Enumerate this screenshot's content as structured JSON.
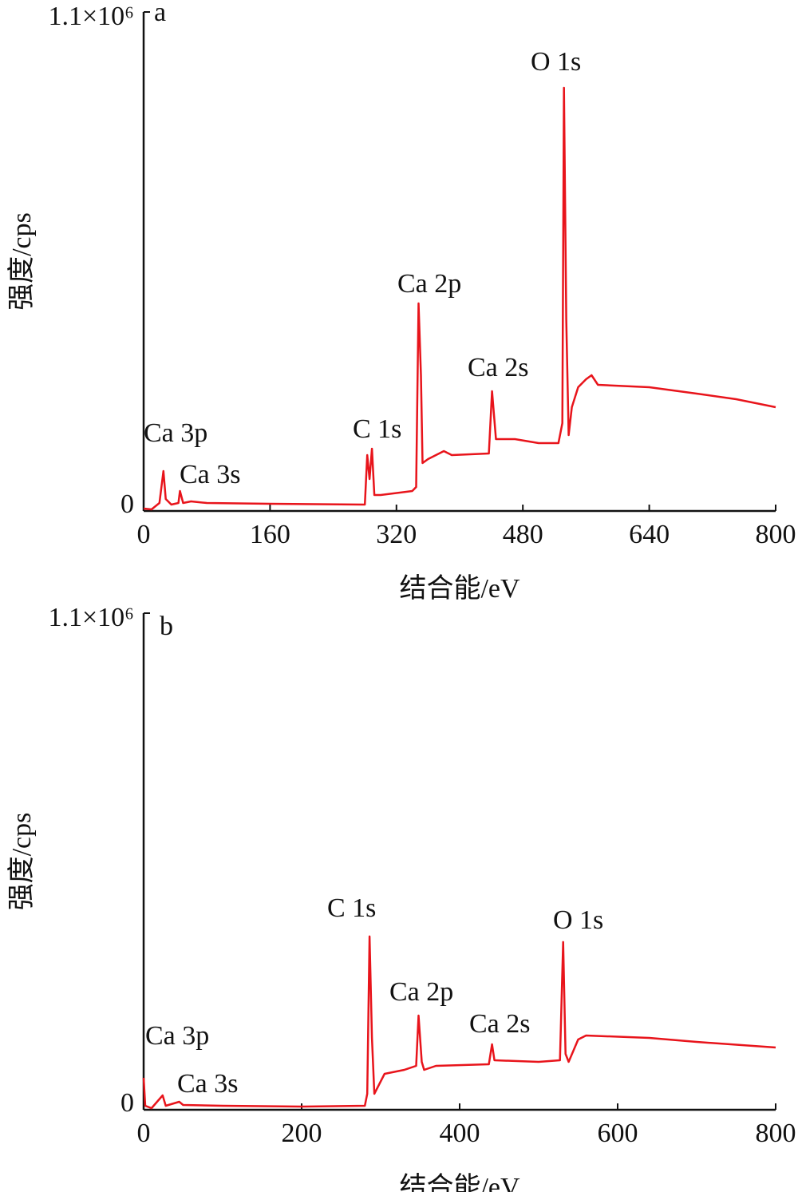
{
  "chart_data": [
    {
      "type": "line",
      "label": "a",
      "xlabel": "结合能/eV",
      "ylabel": "强度/cps",
      "color": "#e8141b",
      "x": [
        0,
        10,
        20,
        25,
        28,
        35,
        44,
        46,
        50,
        60,
        80,
        160,
        280,
        283,
        286,
        289,
        292,
        300,
        340,
        345,
        348,
        351,
        353,
        360,
        380,
        390,
        437,
        441,
        446,
        470,
        500,
        525,
        530,
        532,
        535,
        538,
        542,
        550,
        560,
        567,
        575,
        640,
        700,
        750,
        800
      ],
      "values": [
        5280,
        3520,
        17600,
        88000,
        26400,
        14080,
        17600,
        44000,
        17600,
        21120,
        17600,
        15840,
        14080,
        123200,
        70400,
        137280,
        35200,
        35200,
        44000,
        52800,
        457600,
        299200,
        105600,
        114400,
        132000,
        123200,
        126720,
        264000,
        158400,
        158400,
        149600,
        149600,
        193600,
        932800,
        422400,
        167200,
        228800,
        272800,
        290400,
        299200,
        278080,
        272800,
        258720,
        246400,
        228800
      ],
      "xlim": [
        0,
        800
      ],
      "xticks": [
        0,
        160,
        320,
        480,
        640,
        800
      ],
      "ylim": [
        0,
        1100000
      ],
      "yticks": [
        0,
        {
          "value": 1100000,
          "label": "1.1×10⁶"
        }
      ],
      "annotations": [
        "Ca 3p",
        "Ca 3s",
        "C 1s",
        "Ca 2p",
        "Ca 2s",
        "O 1s"
      ]
    },
    {
      "type": "line",
      "label": "b",
      "xlabel": "结合能/eV",
      "ylabel": "强度/cps",
      "color": "#e8141b",
      "x": [
        0,
        2,
        10,
        24,
        28,
        45,
        50,
        100,
        200,
        280,
        283,
        286,
        289,
        292,
        305,
        330,
        345,
        348,
        352,
        355,
        370,
        437,
        441,
        444,
        500,
        527,
        531,
        534,
        538,
        550,
        560,
        640,
        700,
        800
      ],
      "values": [
        70760,
        8845,
        3538,
        31840,
        8845,
        17690,
        10614,
        8845,
        7076,
        8845,
        35380,
        383900,
        159210,
        35380,
        79600,
        88450,
        97300,
        208700,
        106140,
        88450,
        97300,
        100830,
        145060,
        109680,
        106140,
        109680,
        371500,
        123830,
        106140,
        155670,
        164500,
        159210,
        150370,
        138000
      ],
      "xlim": [
        0,
        800
      ],
      "xticks": [
        0,
        200,
        400,
        600,
        800
      ],
      "ylim": [
        0,
        1100000
      ],
      "yticks": [
        0,
        {
          "value": 1100000,
          "label": "1.1×10⁶"
        }
      ],
      "annotations": [
        "Ca 3p",
        "Ca 3s",
        "C 1s",
        "Ca 2p",
        "Ca 2s",
        "O 1s"
      ]
    }
  ]
}
